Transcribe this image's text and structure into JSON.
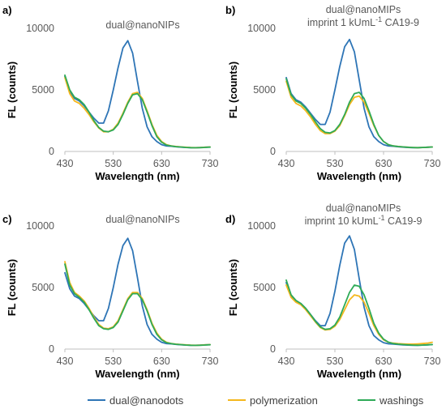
{
  "chart_data": [
    {
      "panel_label": "a)",
      "type": "line",
      "title_lines": [
        "dual@nanoNIPs"
      ],
      "xlabel": "Wavelength (nm)",
      "ylabel": "FL (counts)",
      "xlim": [
        430,
        730
      ],
      "ylim": [
        0,
        10000
      ],
      "xticks": [
        "430",
        "530",
        "630",
        "730"
      ],
      "yticks": [
        "0",
        "5000",
        "10000"
      ],
      "x": [
        430,
        440,
        450,
        460,
        470,
        480,
        490,
        500,
        510,
        520,
        530,
        540,
        550,
        560,
        570,
        580,
        590,
        600,
        610,
        620,
        630,
        640,
        650,
        660,
        670,
        680,
        690,
        700,
        710,
        720,
        730
      ],
      "series": [
        {
          "name": "dual@nanodots",
          "color": "#2e75b6",
          "values": [
            6100,
            4900,
            4300,
            4100,
            3700,
            3200,
            2700,
            2300,
            2300,
            3300,
            5000,
            6800,
            8400,
            9000,
            8000,
            5700,
            3500,
            2000,
            1200,
            800,
            550,
            450,
            420,
            380,
            350,
            320,
            300,
            300,
            320,
            340,
            360
          ]
        },
        {
          "name": "polymerization",
          "color": "#f4b71c",
          "values": [
            6000,
            4700,
            4100,
            3900,
            3500,
            3000,
            2400,
            1900,
            1600,
            1600,
            1800,
            2300,
            3100,
            4000,
            4700,
            4800,
            4300,
            3300,
            2200,
            1300,
            800,
            550,
            450,
            400,
            370,
            340,
            320,
            310,
            320,
            340,
            360
          ]
        },
        {
          "name": "washings",
          "color": "#2eaa57",
          "values": [
            6200,
            5000,
            4400,
            4200,
            3800,
            3200,
            2500,
            1950,
            1650,
            1600,
            1750,
            2200,
            3000,
            3900,
            4600,
            4700,
            4200,
            3200,
            2100,
            1200,
            750,
            520,
            440,
            390,
            360,
            330,
            310,
            300,
            310,
            330,
            350
          ]
        }
      ]
    },
    {
      "panel_label": "b)",
      "type": "line",
      "title_lines": [
        "dual@nanoMIPs",
        "imprint 1 kUmL",
        "-1",
        " CA19-9"
      ],
      "xlabel": "Wavelength (nm)",
      "ylabel": "FL (counts)",
      "xlim": [
        430,
        730
      ],
      "ylim": [
        0,
        10000
      ],
      "xticks": [
        "430",
        "530",
        "630",
        "730"
      ],
      "yticks": [
        "0",
        "5000",
        "10000"
      ],
      "x": [
        430,
        440,
        450,
        460,
        470,
        480,
        490,
        500,
        510,
        520,
        530,
        540,
        550,
        560,
        570,
        580,
        590,
        600,
        610,
        620,
        630,
        640,
        650,
        660,
        670,
        680,
        690,
        700,
        710,
        720,
        730
      ],
      "series": [
        {
          "name": "dual@nanodots",
          "color": "#2e75b6",
          "values": [
            6000,
            4700,
            4200,
            4000,
            3600,
            3100,
            2600,
            2200,
            2200,
            3200,
            5000,
            6900,
            8500,
            9100,
            8100,
            5800,
            3500,
            2000,
            1200,
            800,
            550,
            450,
            420,
            380,
            350,
            320,
            300,
            300,
            320,
            340,
            360
          ]
        },
        {
          "name": "polymerization",
          "color": "#f4b71c",
          "values": [
            5700,
            4400,
            3900,
            3700,
            3300,
            2800,
            2200,
            1700,
            1450,
            1450,
            1650,
            2100,
            2900,
            3800,
            4400,
            4500,
            4000,
            3100,
            2100,
            1300,
            800,
            550,
            450,
            400,
            370,
            340,
            320,
            310,
            320,
            340,
            360
          ]
        },
        {
          "name": "washings",
          "color": "#2eaa57",
          "values": [
            5900,
            4600,
            4100,
            3900,
            3500,
            3000,
            2400,
            1850,
            1550,
            1500,
            1700,
            2200,
            3000,
            4000,
            4700,
            4800,
            4300,
            3300,
            2200,
            1300,
            800,
            550,
            450,
            400,
            370,
            340,
            320,
            310,
            320,
            340,
            360
          ]
        }
      ]
    },
    {
      "panel_label": "c)",
      "type": "line",
      "title_lines": [
        "dual@nanoNIPs"
      ],
      "xlabel": "Wavelength (nm)",
      "ylabel": "FL (counts)",
      "xlim": [
        430,
        730
      ],
      "ylim": [
        0,
        10000
      ],
      "xticks": [
        "430",
        "530",
        "630",
        "730"
      ],
      "yticks": [
        "0",
        "5000",
        "10000"
      ],
      "x": [
        430,
        440,
        450,
        460,
        470,
        480,
        490,
        500,
        510,
        520,
        530,
        540,
        550,
        560,
        570,
        580,
        590,
        600,
        610,
        620,
        630,
        640,
        650,
        660,
        670,
        680,
        690,
        700,
        710,
        720,
        730
      ],
      "series": [
        {
          "name": "dual@nanodots",
          "color": "#2e75b6",
          "values": [
            6200,
            4900,
            4300,
            4100,
            3700,
            3200,
            2700,
            2300,
            2300,
            3300,
            5000,
            6900,
            8400,
            9000,
            8000,
            5800,
            3500,
            2000,
            1200,
            800,
            550,
            450,
            420,
            380,
            350,
            320,
            300,
            300,
            320,
            340,
            360
          ]
        },
        {
          "name": "polymerization",
          "color": "#f4b71c",
          "values": [
            7100,
            5400,
            4600,
            4300,
            3900,
            3300,
            2600,
            2000,
            1700,
            1650,
            1800,
            2300,
            3200,
            4100,
            4600,
            4600,
            4100,
            3200,
            2100,
            1300,
            800,
            550,
            450,
            400,
            370,
            340,
            320,
            310,
            320,
            340,
            360
          ]
        },
        {
          "name": "washings",
          "color": "#2eaa57",
          "values": [
            6900,
            5200,
            4500,
            4200,
            3800,
            3200,
            2500,
            1900,
            1650,
            1600,
            1750,
            2200,
            3100,
            4000,
            4500,
            4500,
            4000,
            3100,
            2000,
            1200,
            750,
            520,
            440,
            390,
            360,
            330,
            310,
            300,
            310,
            330,
            350
          ]
        }
      ]
    },
    {
      "panel_label": "d)",
      "type": "line",
      "title_lines": [
        "dual@nanoMIPs",
        "imprint 10 kUmL",
        "-1",
        " CA19-9"
      ],
      "xlabel": "Wavelength (nm)",
      "ylabel": "FL (counts)",
      "xlim": [
        430,
        730
      ],
      "ylim": [
        0,
        10000
      ],
      "xticks": [
        "430",
        "530",
        "630",
        "730"
      ],
      "yticks": [
        "0",
        "5000",
        "10000"
      ],
      "x": [
        430,
        440,
        450,
        460,
        470,
        480,
        490,
        500,
        510,
        520,
        530,
        540,
        550,
        560,
        570,
        580,
        590,
        600,
        610,
        620,
        630,
        640,
        650,
        660,
        670,
        680,
        690,
        700,
        710,
        720,
        730
      ],
      "series": [
        {
          "name": "dual@nanodots",
          "color": "#2e75b6",
          "values": [
            5400,
            4300,
            3900,
            3700,
            3300,
            2800,
            2300,
            1900,
            1900,
            2900,
            4700,
            6800,
            8600,
            9200,
            8100,
            5700,
            3400,
            1900,
            1100,
            750,
            520,
            430,
            400,
            370,
            340,
            320,
            300,
            300,
            320,
            340,
            360
          ]
        },
        {
          "name": "polymerization",
          "color": "#f4b71c",
          "values": [
            5200,
            4200,
            3800,
            3600,
            3200,
            2700,
            2200,
            1750,
            1550,
            1600,
            1850,
            2400,
            3200,
            4000,
            4400,
            4300,
            3800,
            2900,
            1900,
            1200,
            750,
            550,
            480,
            440,
            420,
            400,
            400,
            420,
            450,
            480,
            550
          ]
        },
        {
          "name": "washings",
          "color": "#2eaa57",
          "values": [
            5600,
            4400,
            3950,
            3700,
            3300,
            2800,
            2250,
            1800,
            1600,
            1650,
            1950,
            2600,
            3600,
            4600,
            5200,
            5100,
            4400,
            3300,
            2100,
            1300,
            800,
            560,
            450,
            400,
            370,
            340,
            320,
            310,
            320,
            340,
            370
          ]
        }
      ]
    }
  ],
  "legend": [
    {
      "label": "dual@nanodots",
      "color": "#2e75b6"
    },
    {
      "label": "polymerization",
      "color": "#f4b71c"
    },
    {
      "label": "washings",
      "color": "#2eaa57"
    }
  ]
}
